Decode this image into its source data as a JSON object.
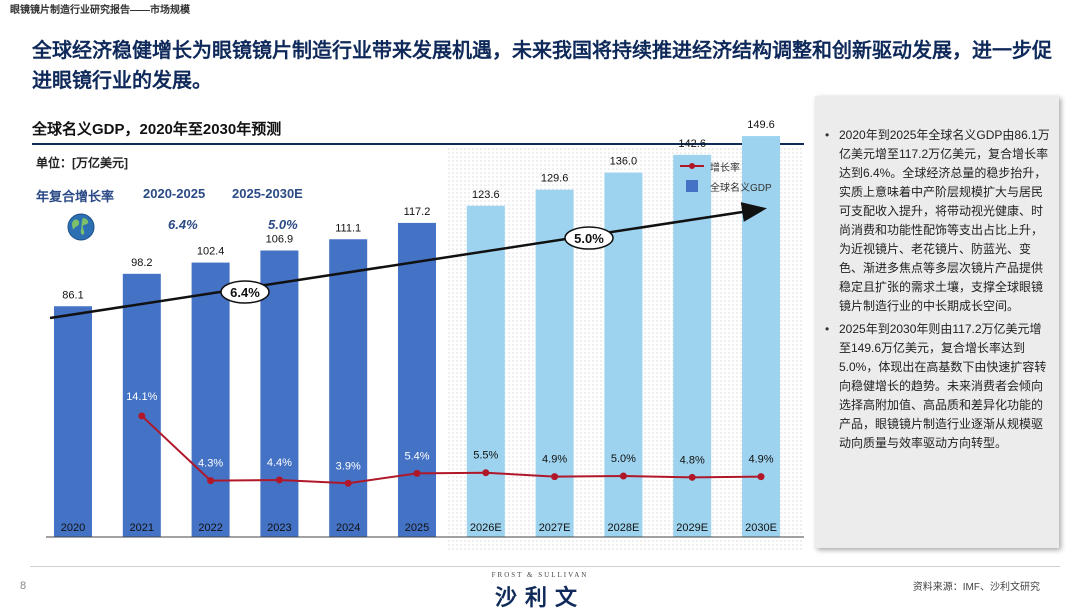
{
  "report": {
    "doc_title": "眼镜镜片制造行业研究报告——市场规模",
    "headline": "全球经济稳健增长为眼镜镜片制造行业带来发展机遇，未来我国将持续推进经济结构调整和创新驱动发展，进一步促进眼镜行业的发展。",
    "page_number": "8",
    "source": "资料来源：IMF、沙利文研究",
    "logo_top": "FROST & SULLIVAN",
    "logo_main": "沙利文"
  },
  "chart_meta": {
    "unit_label": "单位：[万亿美元]",
    "cagr_label": "年复合增长率",
    "cagr_periods": [
      "2020-2025",
      "2025-2030E"
    ],
    "cagr_values": [
      "6.4%",
      "5.0%"
    ],
    "arrow_labels": [
      "6.4%",
      "5.0%"
    ],
    "globe_icon": "globe-icon"
  },
  "chart_data": {
    "type": "bar",
    "title": "全球名义GDP，2020年至2030年预测",
    "categories": [
      "2020",
      "2021",
      "2022",
      "2023",
      "2024",
      "2025",
      "2026E",
      "2027E",
      "2028E",
      "2029E",
      "2030E"
    ],
    "series": [
      {
        "name": "全球名义GDP",
        "type": "bar",
        "values": [
          86.1,
          98.2,
          102.4,
          106.9,
          111.1,
          117.2,
          123.6,
          129.6,
          136.0,
          142.6,
          149.6
        ],
        "value_labels": [
          "86.1",
          "98.2",
          "102.4",
          "106.9",
          "111.1",
          "117.2",
          "123.6",
          "129.6",
          "136.0",
          "142.6",
          "149.6"
        ],
        "color_actual": "#4472c4",
        "color_forecast": "#9dd3ee"
      },
      {
        "name": "增长率",
        "type": "line",
        "values": [
          null,
          14.1,
          4.3,
          4.4,
          3.9,
          5.4,
          5.5,
          4.9,
          5.0,
          4.8,
          4.9
        ],
        "value_labels": [
          "",
          "14.1%",
          "4.3%",
          "4.4%",
          "3.9%",
          "5.4%",
          "5.5%",
          "4.9%",
          "5.0%",
          "4.8%",
          "4.9%"
        ],
        "color": "#b0182a"
      }
    ],
    "forecast_start_index": 6,
    "legend": [
      "增长率",
      "全球名义GDP"
    ],
    "xlabel": "",
    "ylabel": "万亿美元",
    "ylim": [
      0,
      150
    ]
  },
  "sidebar": {
    "bullets": [
      "2020年到2025年全球名义GDP由86.1万亿美元增至117.2万亿美元，复合增长率达到6.4%。全球经济总量的稳步抬升，实质上意味着中产阶层规模扩大与居民可支配收入提升，将带动视光健康、时尚消费和功能性配饰等支出占比上升，为近视镜片、老花镜片、防蓝光、变色、渐进多焦点等多层次镜片产品提供稳定且扩张的需求土壤，支撑全球眼镜镜片制造行业的中长期成长空间。",
      "2025年到2030年则由117.2万亿美元增至149.6万亿美元，复合增长率达到5.0%，体现出在高基数下由快速扩容转向稳健增长的趋势。未来消费者会倾向选择高附加值、高品质和差异化功能的产品，眼镜镜片制造行业逐渐从规模驱动向质量与效率驱动方向转型。"
    ]
  }
}
